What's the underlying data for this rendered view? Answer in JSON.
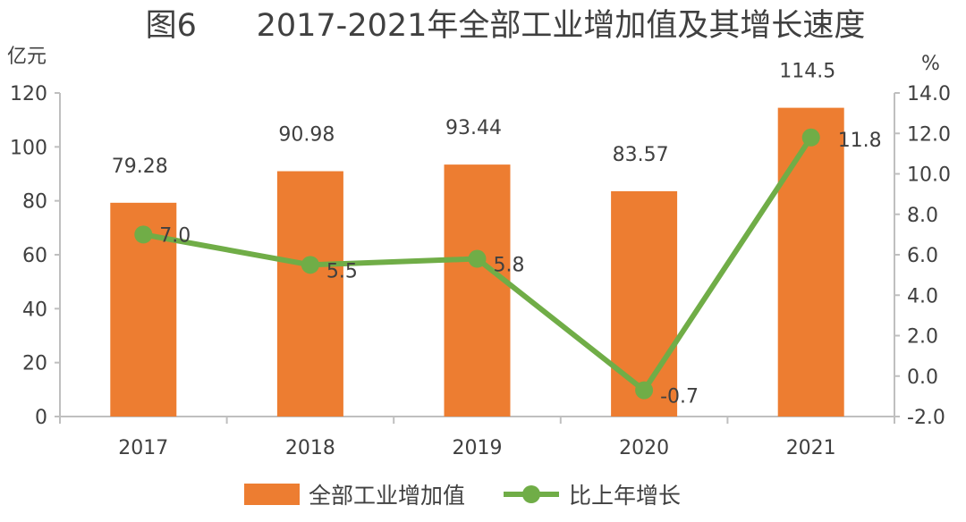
{
  "chart_data": {
    "type": "bar+line",
    "title": "图6      2017-2021年全部工业增加值及其增长速度",
    "categories": [
      "2017",
      "2018",
      "2019",
      "2020",
      "2021"
    ],
    "series": [
      {
        "name": "全部工业增加值",
        "type": "bar",
        "axis": "left",
        "color": "#ED7D31",
        "values": [
          79.28,
          90.98,
          93.44,
          83.57,
          114.5
        ],
        "labels": [
          "79.28",
          "90.98",
          "93.44",
          "83.57",
          "114.5"
        ]
      },
      {
        "name": "比上年增长",
        "type": "line",
        "axis": "right",
        "color": "#70AD47",
        "values": [
          7.0,
          5.5,
          5.8,
          -0.7,
          11.8
        ],
        "labels": [
          "7.0",
          "5.5",
          "5.8",
          "-0.7",
          "11.8"
        ]
      }
    ],
    "left_axis": {
      "unit": "亿元",
      "ylim": [
        0,
        120
      ],
      "ticks": [
        "0",
        "20",
        "40",
        "60",
        "80",
        "100",
        "120"
      ]
    },
    "right_axis": {
      "unit": "%",
      "ylim": [
        -2,
        14
      ],
      "ticks": [
        "-2.0",
        "0.0",
        "2.0",
        "4.0",
        "6.0",
        "8.0",
        "10.0",
        "12.0",
        "14.0"
      ]
    },
    "grid": false,
    "legend": "bottom"
  }
}
